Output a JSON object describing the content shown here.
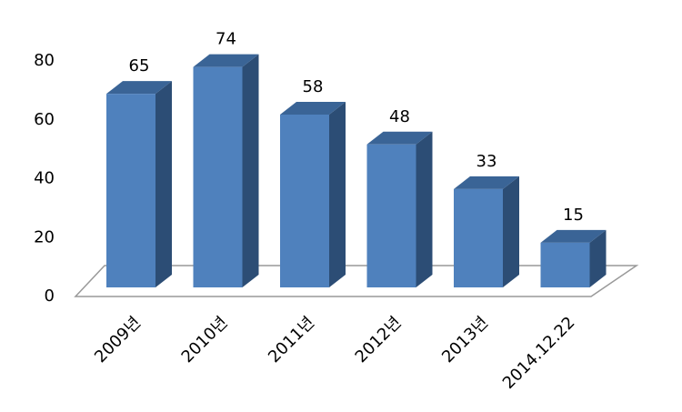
{
  "chart_data": {
    "type": "bar3d",
    "categories": [
      "2009년",
      "2010년",
      "2011년",
      "2012년",
      "2013년",
      "2014.12.22"
    ],
    "values": [
      65,
      74,
      58,
      48,
      33,
      15
    ],
    "color": "#4f81bd",
    "ylim": [
      0,
      80
    ],
    "yticks": [
      0,
      20,
      40,
      60,
      80
    ]
  }
}
